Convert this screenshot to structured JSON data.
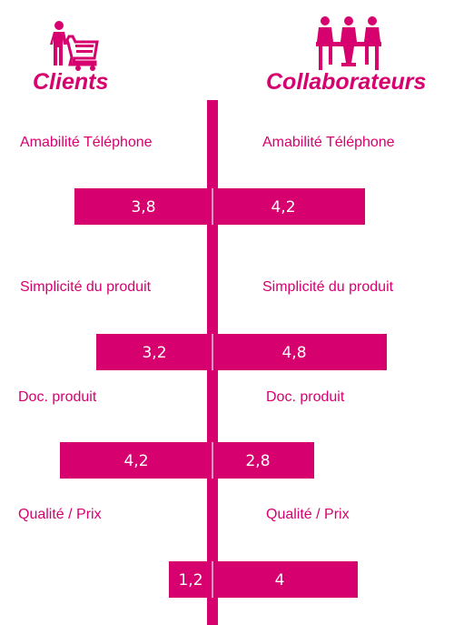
{
  "chart_data": {
    "type": "bar",
    "orientation": "horizontal-diverging",
    "series": [
      {
        "name": "Clients",
        "values": [
          3.8,
          3.2,
          4.2,
          1.2
        ],
        "labels": [
          "3,8",
          "3,2",
          "4,2",
          "1,2"
        ],
        "color": "#d6006f"
      },
      {
        "name": "Collaborateurs",
        "values": [
          4.2,
          4.8,
          2.8,
          4
        ],
        "labels": [
          "4,2",
          "4,8",
          "2,8",
          "4"
        ],
        "color": "#d6006f"
      }
    ],
    "categories": [
      "Amabilité Téléphone",
      "Simplicité du produit",
      "Doc. produit",
      "Qualité / Prix"
    ],
    "xlim": [
      0,
      5
    ],
    "grid": false
  },
  "icons": {
    "left": "shopping-cart-person-icon",
    "right": "meeting-team-icon"
  },
  "colors": {
    "accent": "#d6006f",
    "background": "#ffffff"
  }
}
